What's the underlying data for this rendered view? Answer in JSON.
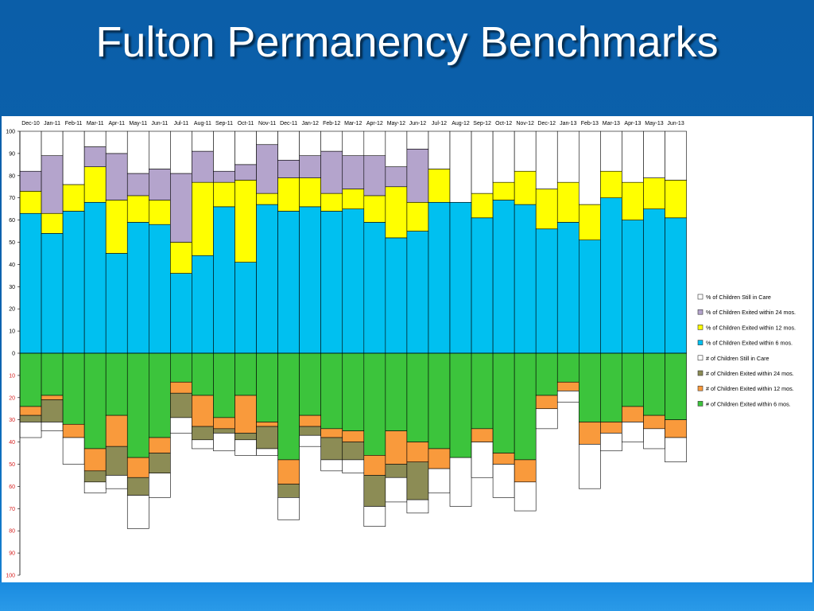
{
  "slide": {
    "title": "Fulton Permanency Benchmarks"
  },
  "colors": {
    "six_months": "#00c0f0",
    "twelve_months": "#ffff00",
    "twentyfour_months": "#b4a4cc",
    "still_in_care": "#ffffff",
    "n_six_months": "#3cc43c",
    "n_twelve_months": "#f99a3c",
    "n_twentyfour_months": "#8c8c55",
    "n_still_in_care": "#ffffff"
  },
  "chart_data": {
    "type": "bar",
    "stacked": true,
    "categories": [
      "Dec-10",
      "Jan-11",
      "Feb-11",
      "Mar-11",
      "Apr-11",
      "May-11",
      "Jun-11",
      "Jul-11",
      "Aug-11",
      "Sep-11",
      "Oct-11",
      "Nov-11",
      "Dec-11",
      "Jan-12",
      "Feb-12",
      "Mar-12",
      "Apr-12",
      "May-12",
      "Jun-12",
      "Jul-12",
      "Aug-12",
      "Sep-12",
      "Oct-12",
      "Nov-12",
      "Dec-12",
      "Jan-13",
      "Feb-13",
      "Mar-13",
      "Apr-13",
      "May-13",
      "Jun-13"
    ],
    "y_ticks_positive": [
      "100",
      "90",
      "80",
      "70",
      "60",
      "50",
      "40",
      "30",
      "20",
      "10",
      "0"
    ],
    "y_ticks_negative": [
      "10",
      "20",
      "30",
      "40",
      "50",
      "60",
      "70",
      "80",
      "90",
      "100"
    ],
    "ylim": [
      -100,
      100
    ],
    "grid": false,
    "legend_position": "right",
    "series_above": [
      {
        "name": "% of Children Exited within 6 mos.",
        "values": [
          63,
          54,
          64,
          68,
          45,
          59,
          58,
          36,
          44,
          66,
          41,
          67,
          64,
          66,
          64,
          65,
          59,
          52,
          55,
          68,
          68,
          61,
          69,
          67,
          56,
          59,
          51,
          70,
          60,
          65,
          61
        ]
      },
      {
        "name": "% of Children Exited within 12 mos.",
        "values": [
          10,
          9,
          12,
          16,
          24,
          12,
          11,
          14,
          33,
          11,
          37,
          5,
          15,
          13,
          8,
          9,
          12,
          23,
          13,
          15,
          0,
          11,
          8,
          15,
          18,
          18,
          16,
          12,
          17,
          14,
          17
        ]
      },
      {
        "name": "% of Children Exited within 24 mos.",
        "values": [
          9,
          26,
          0,
          9,
          21,
          10,
          14,
          31,
          14,
          5,
          7,
          22,
          8,
          10,
          19,
          15,
          18,
          9,
          24,
          0,
          0,
          0,
          0,
          0,
          0,
          0,
          0,
          0,
          0,
          0,
          0
        ]
      },
      {
        "name": "% of Children Still in Care",
        "values": [
          18,
          11,
          24,
          7,
          10,
          19,
          17,
          19,
          9,
          18,
          15,
          6,
          13,
          11,
          9,
          11,
          11,
          16,
          8,
          17,
          32,
          28,
          23,
          18,
          26,
          23,
          33,
          18,
          23,
          21,
          22
        ]
      }
    ],
    "series_below": [
      {
        "name": "# of Children Exited within 6 mos.",
        "values": [
          24,
          19,
          32,
          43,
          28,
          47,
          38,
          13,
          19,
          29,
          19,
          31,
          48,
          28,
          34,
          35,
          46,
          35,
          40,
          43,
          47,
          34,
          45,
          48,
          19,
          13,
          31,
          31,
          24,
          28,
          30
        ]
      },
      {
        "name": "# of Children Exited within 12 mos.",
        "values": [
          4,
          2,
          6,
          10,
          14,
          9,
          7,
          5,
          14,
          5,
          17,
          2,
          11,
          5,
          4,
          5,
          9,
          15,
          9,
          9,
          0,
          6,
          5,
          10,
          6,
          4,
          10,
          5,
          7,
          6,
          8
        ]
      },
      {
        "name": "# of Children Exited within 24 mos.",
        "values": [
          3,
          10,
          0,
          5,
          13,
          8,
          9,
          11,
          6,
          2,
          3,
          10,
          6,
          4,
          10,
          8,
          14,
          6,
          17,
          0,
          0,
          0,
          0,
          0,
          0,
          0,
          0,
          0,
          0,
          0,
          0
        ]
      },
      {
        "name": "# of Children Still in Care",
        "values": [
          7,
          4,
          12,
          5,
          6,
          15,
          11,
          7,
          4,
          8,
          7,
          3,
          10,
          5,
          5,
          6,
          9,
          11,
          6,
          11,
          22,
          16,
          15,
          13,
          9,
          5,
          20,
          8,
          9,
          9,
          11
        ]
      }
    ],
    "legend_entries": [
      "% of Children Still in Care",
      "% of Children Exited within 24 mos.",
      "% of Children Exited within 12 mos.",
      "% of Children Exited within 6 mos.",
      "# of Children Still in Care",
      "# of Children Exited within 24 mos.",
      "# of Children Exited within 12 mos.",
      "# of Children Exited within 6 mos."
    ]
  }
}
